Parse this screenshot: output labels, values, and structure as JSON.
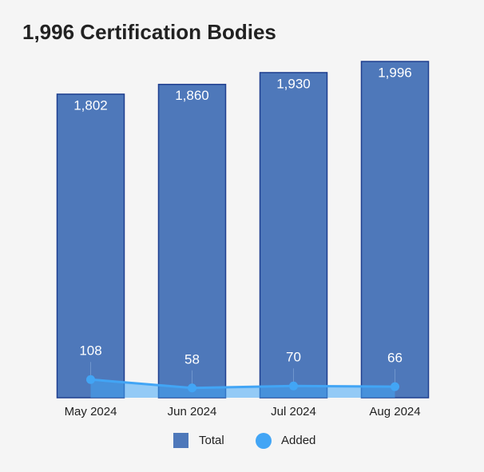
{
  "chart_data": {
    "type": "bar",
    "title": "1,996 Certification Bodies",
    "categories": [
      "May 2024",
      "Jun 2024",
      "Jul 2024",
      "Aug 2024"
    ],
    "series": [
      {
        "name": "Total",
        "type": "bar",
        "color": "#4e78ba",
        "values": [
          1802,
          1860,
          1930,
          1996
        ],
        "value_labels": [
          "1,802",
          "1,860",
          "1,930",
          "1,996"
        ]
      },
      {
        "name": "Added",
        "type": "line",
        "color": "#42a5f5",
        "values": [
          108,
          58,
          70,
          66
        ]
      }
    ],
    "legend": "bottom"
  }
}
